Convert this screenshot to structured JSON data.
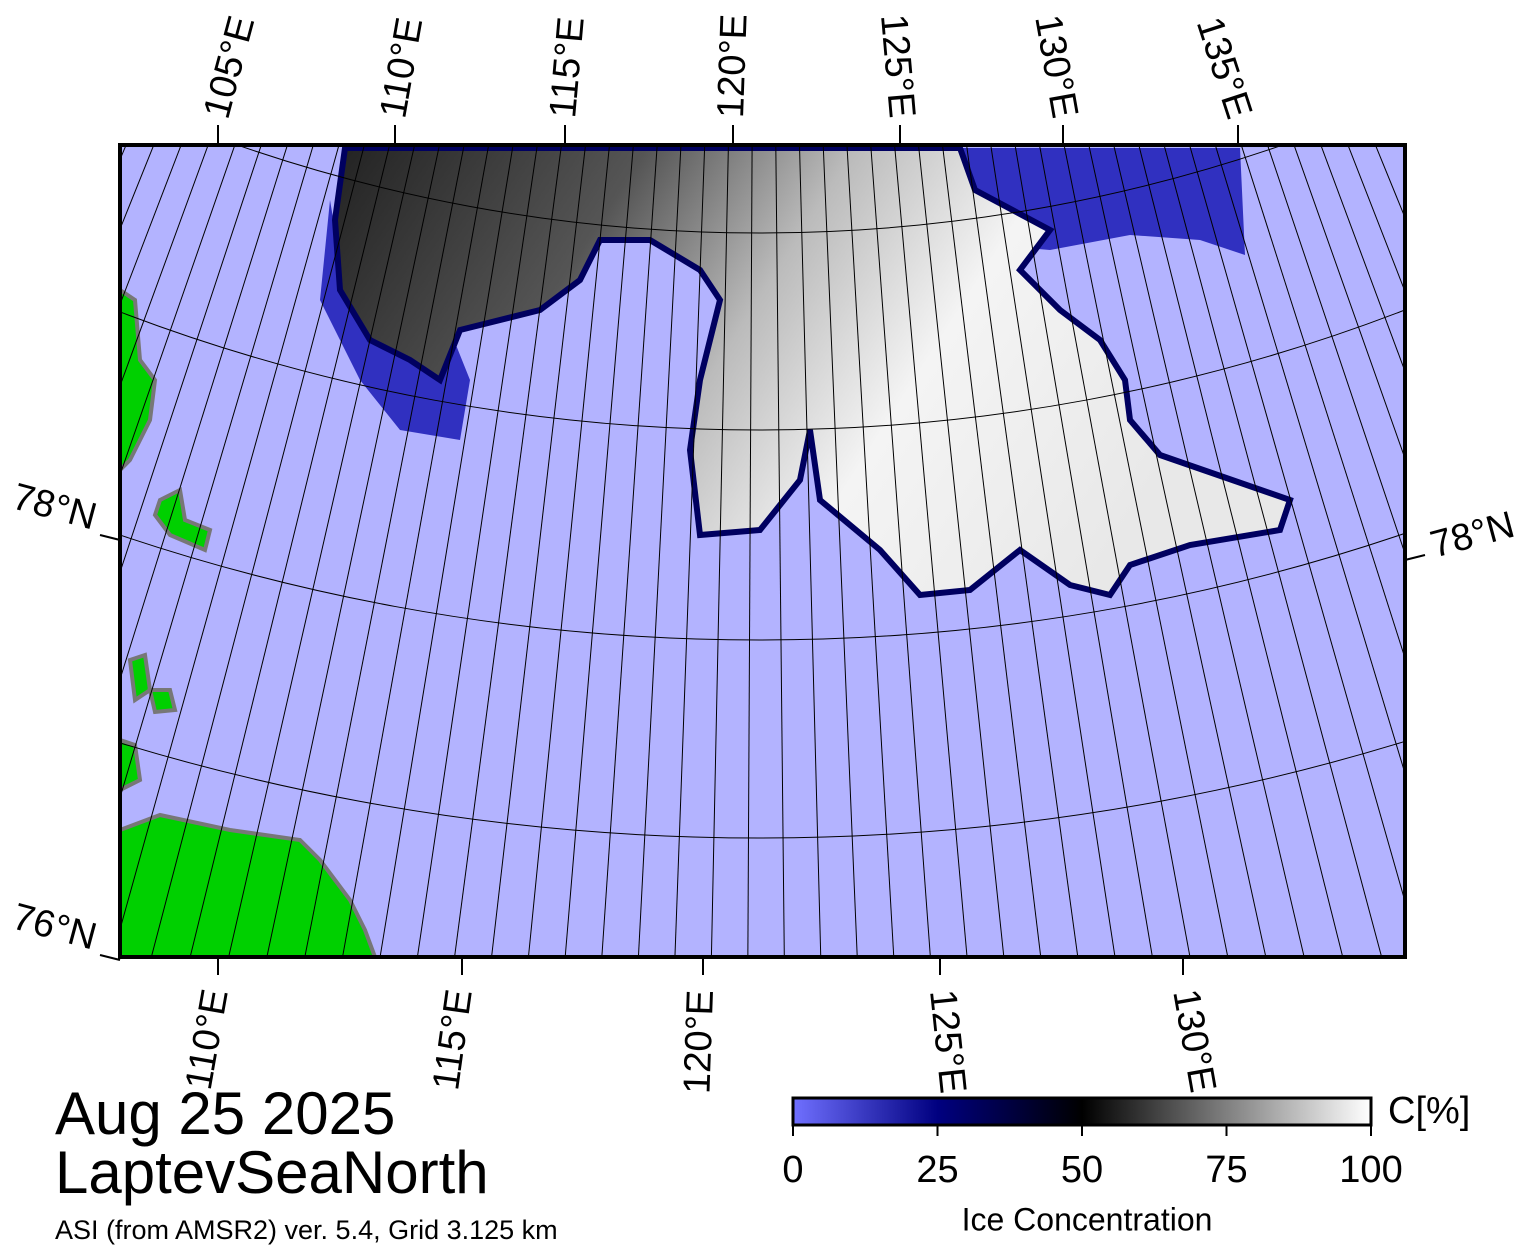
{
  "map": {
    "top_lon_labels": [
      "105°E",
      "110°E",
      "115°E",
      "120°E",
      "125°E",
      "130°E",
      "135°E"
    ],
    "bottom_lon_labels": [
      "110°E",
      "115°E",
      "120°E",
      "125°E",
      "130°E"
    ],
    "left_lat_labels": [
      "78°N",
      "76°N"
    ],
    "right_lat_labels": [
      "78°N"
    ]
  },
  "title": {
    "date": "Aug 25 2025",
    "region": "LaptevSeaNorth",
    "source": "ASI (from AMSR2) ver. 5.4,  Grid 3.125 km"
  },
  "colorbar": {
    "unit": "C[%]",
    "label": "Ice Concentration",
    "range": [
      0,
      100
    ],
    "ticks": [
      0,
      25,
      50,
      75,
      100
    ]
  }
}
